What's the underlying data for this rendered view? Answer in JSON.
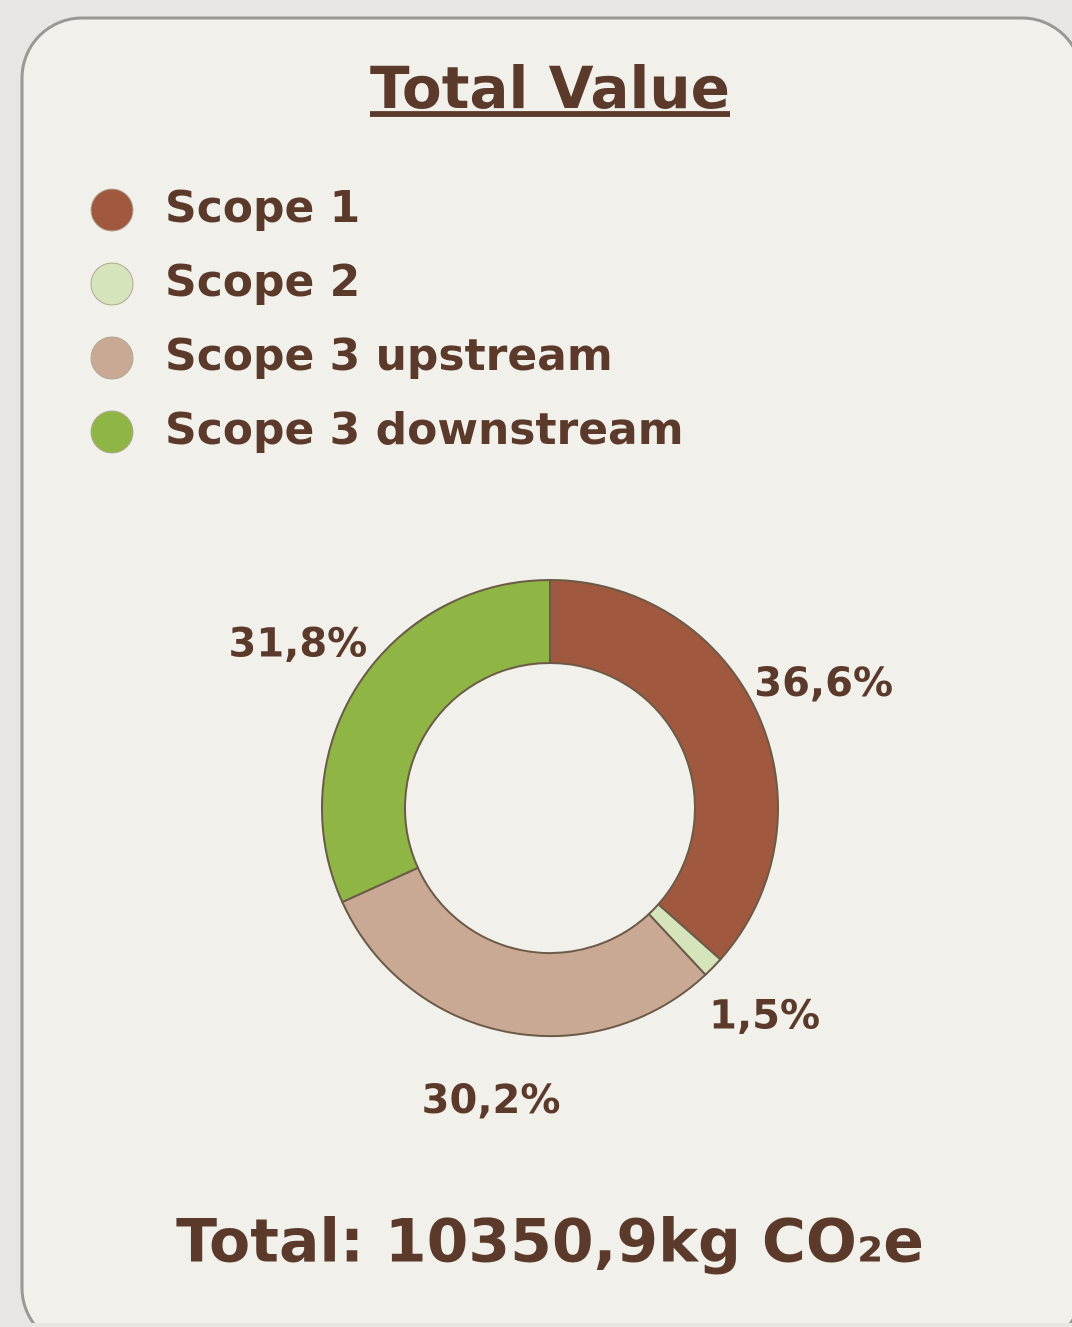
{
  "chart_data": {
    "type": "donut",
    "title": "Total Value",
    "categories": [
      "Scope 1",
      "Scope 2",
      "Scope 3 upstream",
      "Scope 3 downstream"
    ],
    "values": [
      36.6,
      1.5,
      30.2,
      31.8
    ],
    "value_labels": [
      "36,6%",
      "1,5%",
      "30,2%",
      "31,8%"
    ],
    "colors": [
      "#a0583e",
      "#d6e4bb",
      "#c9a894",
      "#8fb545"
    ],
    "annotation": "Total: 10350,9kg CO₂e"
  }
}
